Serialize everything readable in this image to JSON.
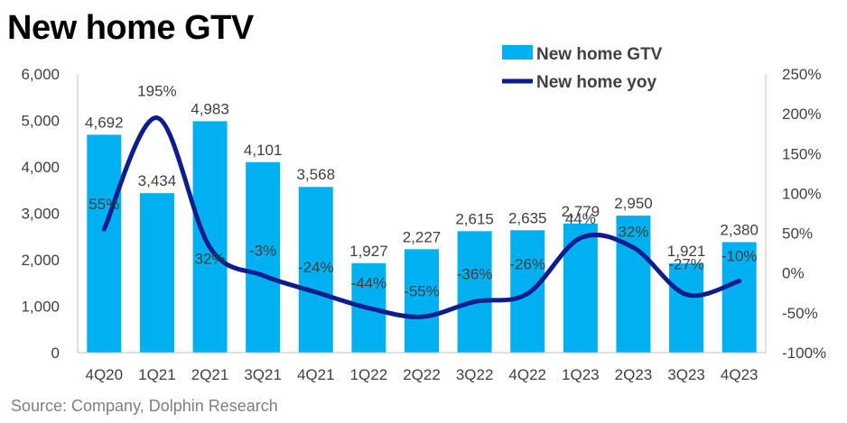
{
  "title": "New home GTV",
  "source": "Source: Company, Dolphin Research",
  "colors": {
    "bar": "#00B0F0",
    "line": "#0D1D8C",
    "axis_text": "#404040"
  },
  "chart_data": {
    "type": "bar",
    "categories": [
      "4Q20",
      "1Q21",
      "2Q21",
      "3Q21",
      "4Q21",
      "1Q22",
      "2Q22",
      "3Q22",
      "4Q22",
      "1Q23",
      "2Q23",
      "3Q23",
      "4Q23"
    ],
    "series": [
      {
        "name": "New home GTV",
        "type": "bar",
        "axis": "left",
        "values": [
          4692,
          3434,
          4983,
          4101,
          3568,
          1927,
          2227,
          2615,
          2635,
          2779,
          2950,
          1921,
          2380
        ],
        "labels": [
          "4,692",
          "3,434",
          "4,983",
          "4,101",
          "3,568",
          "1,927",
          "2,227",
          "2,615",
          "2,635",
          "2,779",
          "2,950",
          "1,921",
          "2,380"
        ]
      },
      {
        "name": "New home yoy",
        "type": "line",
        "axis": "right",
        "values": [
          55,
          195,
          32,
          -3,
          -24,
          -44,
          -55,
          -36,
          -26,
          44,
          32,
          -27,
          -10
        ],
        "labels": [
          "55%",
          "195%",
          "32%",
          "-3%",
          "-24%",
          "-44%",
          "-55%",
          "-36%",
          "-26%",
          "44%",
          "32%",
          "-27%",
          "-10%"
        ]
      }
    ],
    "y_left": {
      "min": 0,
      "max": 6000,
      "ticks": [
        "0",
        "1,000",
        "2,000",
        "3,000",
        "4,000",
        "5,000",
        "6,000"
      ]
    },
    "y_right": {
      "min": -100,
      "max": 250,
      "ticks": [
        "-100%",
        "-50%",
        "0%",
        "50%",
        "100%",
        "150%",
        "200%",
        "250%"
      ]
    },
    "grid": false,
    "legend": "top-right"
  }
}
